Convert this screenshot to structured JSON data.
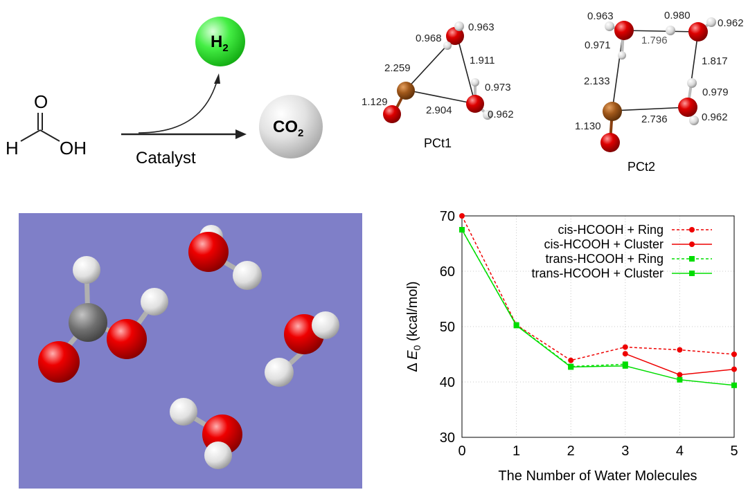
{
  "reaction": {
    "reactant": {
      "top_atom": "O",
      "left_atom": "H",
      "right_group": "OH"
    },
    "catalyst_label": "Catalyst",
    "product_h2": {
      "main": "H",
      "sub": "2"
    },
    "product_co2": {
      "main": "CO",
      "sub": "2"
    }
  },
  "pct1": {
    "caption": "PCt1",
    "labels": {
      "d1": "0.968",
      "d2": "0.963",
      "d3": "2.259",
      "d4": "1.911",
      "d5": "0.973",
      "d6": "1.129",
      "d7": "2.904",
      "d8": "0.962"
    }
  },
  "pct2": {
    "caption": "PCt2",
    "labels": {
      "d1": "0.963",
      "d2": "0.980",
      "d3": "0.962",
      "d4": "0.971",
      "d5": "1.796",
      "d6": "1.817",
      "d7": "2.133",
      "d8": "0.979",
      "d9": "1.130",
      "d10": "2.736",
      "d11": "0.962"
    }
  },
  "colors": {
    "oxygen": "#e00000",
    "hydrogen": "#e8e8e8",
    "carbon": "#6e6e6e",
    "metal": "#a0581a",
    "h2_ball": "#22dd22",
    "co2_ball": "#d8d8d8",
    "viewport_bg": "#7f7fc8",
    "cis_series": "#ee0000",
    "trans_series": "#00dd00"
  },
  "chart_data": {
    "type": "line",
    "xlabel": "The Number of Water Molecules",
    "ylabel_prefix": "Δ ",
    "ylabel_symbol": "E",
    "ylabel_subscript": "0",
    "ylabel_unit": " (kcal/mol)",
    "x_ticks": [
      "0",
      "1",
      "2",
      "3",
      "4",
      "5"
    ],
    "y_ticks": [
      "30",
      "40",
      "50",
      "60",
      "70"
    ],
    "xlim": [
      0,
      5
    ],
    "ylim": [
      30,
      70
    ],
    "grid": true,
    "legend_position": "top-right",
    "series": [
      {
        "name": "cis-HCOOH + Ring",
        "color": "#ee0000",
        "dashed": true,
        "marker": "circle",
        "points": [
          [
            0,
            70.0
          ],
          [
            1,
            50.3
          ],
          [
            2,
            43.9
          ],
          [
            3,
            46.3
          ],
          [
            4,
            45.8
          ],
          [
            5,
            45.0
          ]
        ]
      },
      {
        "name": "cis-HCOOH + Cluster",
        "color": "#ee0000",
        "dashed": false,
        "marker": "circle",
        "points": [
          [
            3,
            45.1
          ],
          [
            4,
            41.3
          ],
          [
            5,
            42.3
          ]
        ]
      },
      {
        "name": "trans-HCOOH + Ring",
        "color": "#00dd00",
        "dashed": true,
        "marker": "square",
        "points": [
          [
            0,
            67.5
          ],
          [
            1,
            50.3
          ],
          [
            2,
            42.8
          ],
          [
            3,
            43.2
          ]
        ]
      },
      {
        "name": "trans-HCOOH + Cluster",
        "color": "#00dd00",
        "dashed": false,
        "marker": "square",
        "points": [
          [
            0,
            67.5
          ],
          [
            1,
            50.2
          ],
          [
            2,
            42.7
          ],
          [
            3,
            42.9
          ],
          [
            4,
            40.4
          ],
          [
            5,
            39.4
          ]
        ]
      }
    ]
  }
}
